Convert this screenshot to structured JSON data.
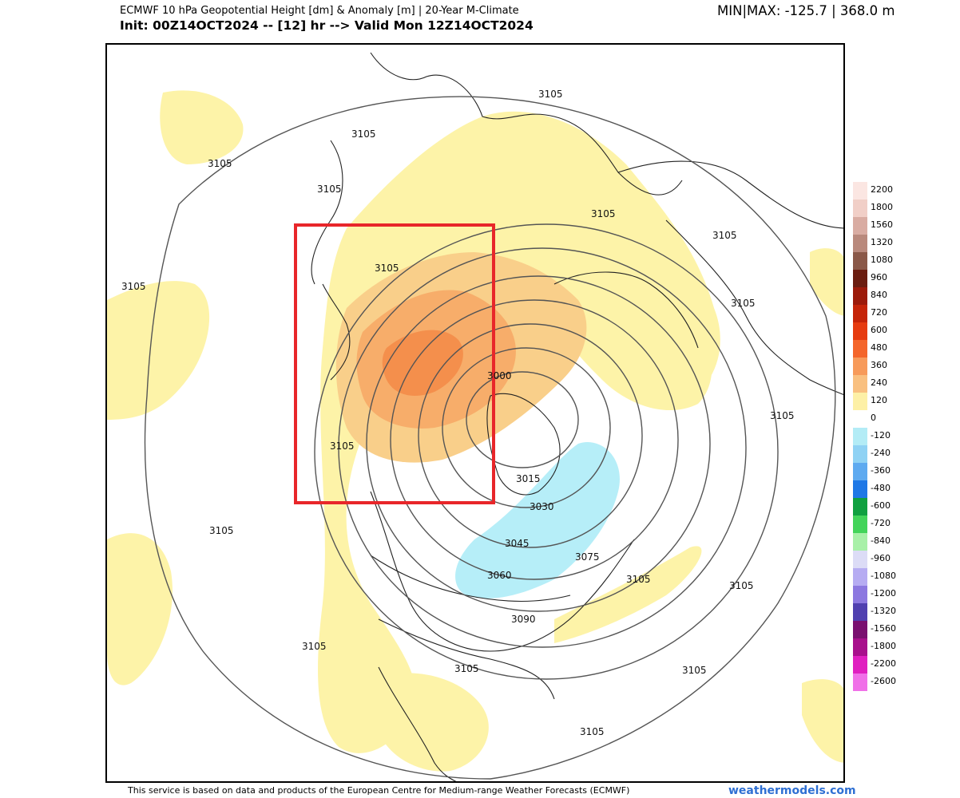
{
  "header": {
    "title": "ECMWF 10 hPa Geopotential Height [dm] & Anomaly [m] | 20-Year M-Climate",
    "subtitle": "Init: 00Z14OCT2024 -- [12] hr --> Valid Mon 12Z14OCT2024",
    "minmax": "MIN|MAX: -125.7 | 368.0 m"
  },
  "legend": {
    "items": [
      {
        "label": "2200",
        "color": "#fbe6e2"
      },
      {
        "label": "1800",
        "color": "#f1cfc7"
      },
      {
        "label": "1560",
        "color": "#d9aca2"
      },
      {
        "label": "1320",
        "color": "#b9897c"
      },
      {
        "label": "1080",
        "color": "#8a5848"
      },
      {
        "label": "960",
        "color": "#6b1d10"
      },
      {
        "label": "840",
        "color": "#9c1a0a"
      },
      {
        "label": "720",
        "color": "#c52408"
      },
      {
        "label": "600",
        "color": "#e63b10"
      },
      {
        "label": "480",
        "color": "#f4652a"
      },
      {
        "label": "360",
        "color": "#f79a5a"
      },
      {
        "label": "240",
        "color": "#f9c080"
      },
      {
        "label": "120",
        "color": "#fdf0a6"
      },
      {
        "label": "0",
        "color": "#ffffff"
      },
      {
        "label": "-120",
        "color": "#b3ecf6"
      },
      {
        "label": "-240",
        "color": "#8fd2f4"
      },
      {
        "label": "-360",
        "color": "#5eaaf0"
      },
      {
        "label": "-480",
        "color": "#1f78e6"
      },
      {
        "label": "-600",
        "color": "#10a040"
      },
      {
        "label": "-720",
        "color": "#43d45a"
      },
      {
        "label": "-840",
        "color": "#a8f0a8"
      },
      {
        "label": "-960",
        "color": "#dcdcf6"
      },
      {
        "label": "-1080",
        "color": "#b6acf2"
      },
      {
        "label": "-1200",
        "color": "#8c78e0"
      },
      {
        "label": "-1320",
        "color": "#5040b0"
      },
      {
        "label": "-1560",
        "color": "#7a1070"
      },
      {
        "label": "-1800",
        "color": "#a8108c"
      },
      {
        "label": "-2200",
        "color": "#e020c0"
      },
      {
        "label": "-2600",
        "color": "#f070e8"
      }
    ]
  },
  "map": {
    "contour_labels": [
      "3105",
      "3105",
      "3105",
      "3105",
      "3105",
      "3105",
      "3105",
      "3105",
      "3105",
      "3105",
      "3105",
      "3105",
      "3105",
      "3105",
      "3105",
      "3105",
      "3105",
      "3105",
      "3000",
      "3015",
      "3030",
      "3045",
      "3060",
      "3075",
      "3090"
    ],
    "highlight_box_color": "#e8262a"
  },
  "footer": {
    "text": "This service is based on data and products of the European Centre for Medium-range Weather Forecasts (ECMWF)",
    "brand": "weathermodels.com"
  }
}
